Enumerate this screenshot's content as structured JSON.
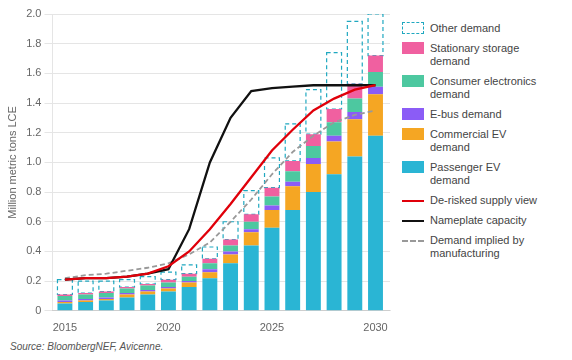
{
  "chart_data": {
    "type": "bar",
    "stacked": true,
    "ylabel": "Million metric tons LCE",
    "annotations": [
      "Source: BloombergNEF, Avicenne."
    ],
    "x": [
      2015,
      2016,
      2017,
      2018,
      2019,
      2020,
      2021,
      2022,
      2023,
      2024,
      2025,
      2026,
      2027,
      2028,
      2029,
      2030
    ],
    "xlim": [
      2014.4,
      2030.7
    ],
    "xticks": [
      2015,
      2020,
      2025,
      2030
    ],
    "ylim": [
      0,
      2.0
    ],
    "yticks": [
      0,
      0.2,
      0.4,
      0.6,
      0.8,
      {
        "value": 1,
        "label": "1.0"
      },
      1.2,
      1.4,
      1.6,
      1.8,
      {
        "value": 2,
        "label": "2.0"
      }
    ],
    "grid": true,
    "legend": "right",
    "series": [
      {
        "name": "Other demand",
        "type": "bar",
        "color": "#1FA8C0",
        "line_style": "dashed",
        "values": [
          0.1,
          0.08,
          0.07,
          0.05,
          0.05,
          0.05,
          0.06,
          0.08,
          0.12,
          0.16,
          0.2,
          0.25,
          0.3,
          0.38,
          0.42,
          0.28
        ]
      },
      {
        "name": "Stationary storage\ndemand",
        "type": "bar",
        "color": "#F060A0",
        "values": [
          0.01,
          0.01,
          0.01,
          0.01,
          0.01,
          0.02,
          0.02,
          0.03,
          0.04,
          0.05,
          0.06,
          0.07,
          0.08,
          0.09,
          0.1,
          0.11
        ]
      },
      {
        "name": "Consumer electronics\ndemand",
        "type": "bar",
        "color": "#4DC8A0",
        "values": [
          0.03,
          0.03,
          0.03,
          0.03,
          0.03,
          0.03,
          0.03,
          0.04,
          0.04,
          0.05,
          0.06,
          0.07,
          0.08,
          0.09,
          0.09,
          0.1
        ]
      },
      {
        "name": "E-bus demand",
        "type": "bar",
        "color": "#8B5CF6",
        "values": [
          0.01,
          0.01,
          0.01,
          0.01,
          0.01,
          0.01,
          0.01,
          0.02,
          0.02,
          0.02,
          0.03,
          0.03,
          0.04,
          0.04,
          0.05,
          0.05
        ]
      },
      {
        "name": "Commercial EV\ndemand",
        "type": "bar",
        "color": "#F5A623",
        "values": [
          0.01,
          0.01,
          0.01,
          0.02,
          0.02,
          0.02,
          0.03,
          0.04,
          0.06,
          0.09,
          0.12,
          0.16,
          0.19,
          0.22,
          0.25,
          0.28
        ]
      },
      {
        "name": "Passenger EV\ndemand",
        "type": "bar",
        "color": "#2AB5D4",
        "values": [
          0.05,
          0.06,
          0.07,
          0.09,
          0.11,
          0.13,
          0.16,
          0.22,
          0.32,
          0.44,
          0.56,
          0.68,
          0.8,
          0.92,
          1.04,
          1.18
        ]
      },
      {
        "name": "De-risked supply view",
        "type": "line",
        "color": "#E0000A",
        "line_style": "solid",
        "values": [
          0.21,
          0.22,
          0.22,
          0.23,
          0.25,
          0.3,
          0.4,
          0.55,
          0.72,
          0.9,
          1.08,
          1.22,
          1.35,
          1.43,
          1.49,
          1.52
        ]
      },
      {
        "name": "Nameplate capacity",
        "type": "line",
        "color": "#111111",
        "line_style": "solid",
        "values": [
          0.21,
          0.22,
          0.22,
          0.23,
          0.25,
          0.28,
          0.55,
          1.0,
          1.3,
          1.48,
          1.5,
          1.51,
          1.52,
          1.52,
          1.52,
          1.52
        ]
      },
      {
        "name": "Demand implied by\nmanufacturing",
        "type": "line",
        "color": "#999999",
        "line_style": "dashed",
        "values": [
          0.22,
          0.24,
          0.25,
          0.27,
          0.29,
          0.32,
          0.38,
          0.46,
          0.6,
          0.75,
          0.92,
          1.07,
          1.18,
          1.27,
          1.32,
          1.35
        ]
      }
    ]
  }
}
